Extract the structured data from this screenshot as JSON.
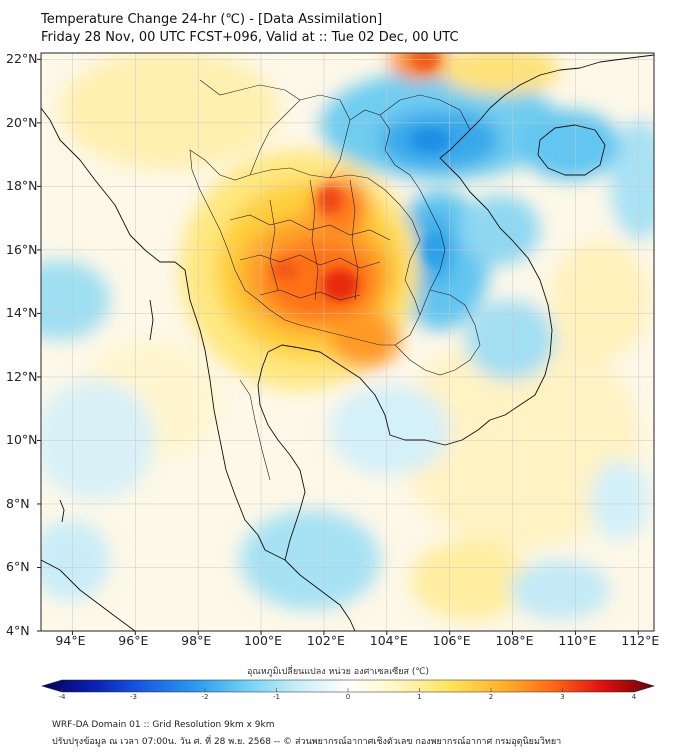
{
  "title": {
    "line1": "Temperature Change 24-hr (℃) - [Data Assimilation]",
    "line2": "Friday 28 Nov, 00 UTC FCST+096, Valid at :: Tue 02 Dec, 00 UTC"
  },
  "map": {
    "lon_range": [
      93,
      112.5
    ],
    "lat_range": [
      4,
      22.2
    ],
    "lon_ticks": [
      "94°E",
      "96°E",
      "98°E",
      "100°E",
      "102°E",
      "104°E",
      "106°E",
      "108°E",
      "110°E",
      "112°E"
    ],
    "lat_ticks": [
      "22°N",
      "20°N",
      "18°N",
      "16°N",
      "14°N",
      "12°N",
      "10°N",
      "8°N",
      "6°N",
      "4°N"
    ]
  },
  "colorbar": {
    "label": "อุณหภูมิเปลี่ยนแปลง หน่วย องศาเซลเซียส (℃)",
    "ticks": [
      "-4",
      "-3",
      "-2",
      "-1",
      "0",
      "1",
      "2",
      "3",
      "4"
    ],
    "colors": [
      "#05005a",
      "#0a1fb4",
      "#1a5ce6",
      "#2a9aee",
      "#6fd2f4",
      "#c8eef8",
      "#ffffff",
      "#fff7c0",
      "#ffe35a",
      "#ffb42c",
      "#ff6a14",
      "#e01010",
      "#6a0000"
    ]
  },
  "footer": {
    "line1": "WRF-DA Domain 01 :: Grid Resolution 9km x 9km",
    "line2": "ปรับปรุงข้อมูล ณ เวลา 07:00น. วัน ศ. ที่ 28 พ.ย. 2568 -- © ส่วนพยากรณ์อากาศเชิงตัวเลข กองพยากรณ์อากาศ กรมอุตุนิยมวิทยา"
  }
}
